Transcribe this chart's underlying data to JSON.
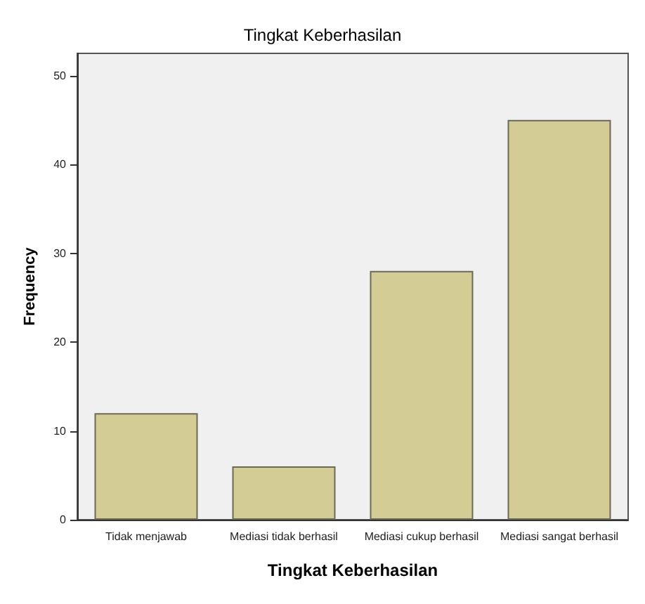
{
  "chart_data": {
    "type": "bar",
    "title": "Tingkat Keberhasilan",
    "xlabel": "Tingkat Keberhasilan",
    "ylabel": "Frequency",
    "categories": [
      "Tidak menjawab",
      "Mediasi tidak berhasil",
      "Mediasi cukup berhasil",
      "Mediasi sangat berhasil"
    ],
    "values": [
      12,
      6,
      28,
      45
    ],
    "color": "#d3cc95",
    "ylim": [
      0,
      52.5
    ],
    "yticks": [
      0,
      10,
      20,
      30,
      40,
      50
    ],
    "grid": false
  }
}
